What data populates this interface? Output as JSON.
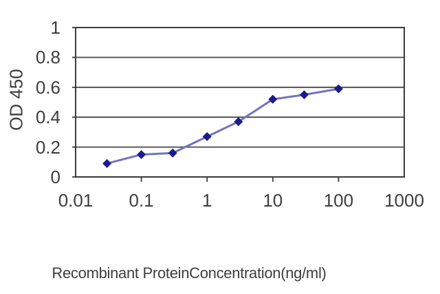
{
  "colors": {
    "background": "#ffffff",
    "axis": "#3a3a3a",
    "grid": "#474747",
    "text": "#3d3d3d",
    "line": "#7373be",
    "marker": "#1b1b8e"
  },
  "chart_data": {
    "type": "line",
    "title": "",
    "xlabel": "Recombinant ProteinConcentration(ng/ml)",
    "ylabel": "OD 450",
    "x_scale": "log",
    "xlim": [
      0.01,
      1000
    ],
    "ylim": [
      0,
      1
    ],
    "x_ticks": [
      0.01,
      0.1,
      1,
      10,
      100,
      1000
    ],
    "x_tick_labels": [
      "0.01",
      "0.1",
      "1",
      "10",
      "100",
      "1000"
    ],
    "y_ticks": [
      0,
      0.2,
      0.4,
      0.6,
      0.8,
      1
    ],
    "y_tick_labels": [
      "0",
      "0.2",
      "0.4",
      "0.6",
      "0.8",
      "1"
    ],
    "grid": "horizontal",
    "legend": "none",
    "series": [
      {
        "name": "OD 450",
        "marker": "diamond",
        "x": [
          0.03,
          0.1,
          0.3,
          1,
          3,
          10,
          30,
          100
        ],
        "y": [
          0.09,
          0.15,
          0.16,
          0.27,
          0.37,
          0.52,
          0.55,
          0.59
        ]
      }
    ]
  }
}
